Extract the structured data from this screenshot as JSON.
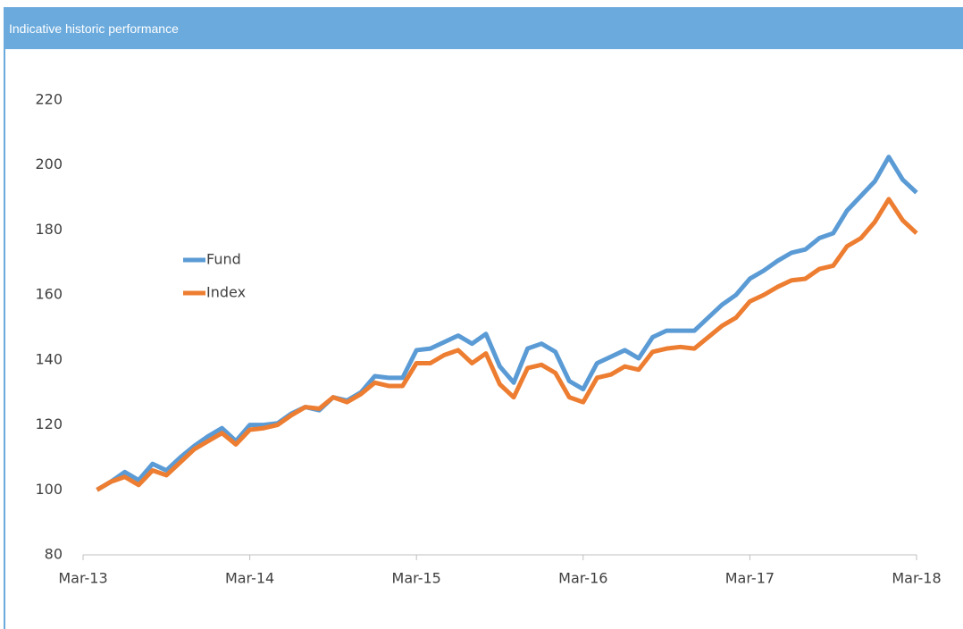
{
  "header": {
    "title": "Indicative historic performance"
  },
  "chart_data": {
    "type": "line",
    "categories": [
      "Mar-13",
      null,
      null,
      null,
      null,
      null,
      null,
      null,
      null,
      null,
      null,
      null,
      "Mar-14",
      null,
      null,
      null,
      null,
      null,
      null,
      null,
      null,
      null,
      null,
      null,
      "Mar-15",
      null,
      null,
      null,
      null,
      null,
      null,
      null,
      null,
      null,
      null,
      null,
      "Mar-16",
      null,
      null,
      null,
      null,
      null,
      null,
      null,
      null,
      null,
      null,
      null,
      "Mar-17",
      null,
      null,
      null,
      null,
      null,
      null,
      null,
      null,
      null,
      null,
      null,
      "Mar-18"
    ],
    "series": [
      {
        "name": "Fund",
        "color": "#5b9bd5",
        "values": [
          null,
          100,
          102.5,
          105.5,
          103,
          108,
          106,
          110,
          113.5,
          116.5,
          119,
          115,
          120,
          120,
          120.5,
          123.5,
          125.5,
          124.5,
          128.5,
          127.5,
          130,
          135,
          134.5,
          134.5,
          143,
          143.5,
          145.5,
          147.5,
          145,
          148,
          138,
          133,
          143.5,
          145,
          142.5,
          133.5,
          131,
          139,
          141,
          143,
          140.5,
          147,
          149,
          149,
          149,
          153,
          157,
          160,
          165,
          167.5,
          170.5,
          173,
          174,
          177.5,
          179,
          186,
          190.5,
          195,
          202.5,
          195.5,
          191.5
        ]
      },
      {
        "name": "Index",
        "color": "#ed7d31",
        "values": [
          null,
          100,
          102.5,
          104,
          101.5,
          106,
          104.5,
          108.5,
          112.5,
          115,
          117.5,
          114,
          118.5,
          119,
          120,
          123,
          125.5,
          125,
          128.5,
          127,
          129.5,
          133,
          132,
          132,
          139,
          139,
          141.5,
          143,
          139,
          142,
          132.5,
          128.5,
          137.5,
          138.5,
          136,
          128.5,
          127,
          134.5,
          135.5,
          138,
          137,
          142.5,
          143.5,
          144,
          143.5,
          147,
          150.5,
          153,
          158,
          160,
          162.5,
          164.5,
          165,
          168,
          169,
          175,
          177.5,
          182.5,
          189.5,
          183,
          179
        ]
      }
    ],
    "ylim": [
      80,
      220
    ],
    "yticks": [
      80,
      100,
      120,
      140,
      160,
      180,
      200,
      220
    ],
    "grid": false,
    "legend": "left"
  }
}
